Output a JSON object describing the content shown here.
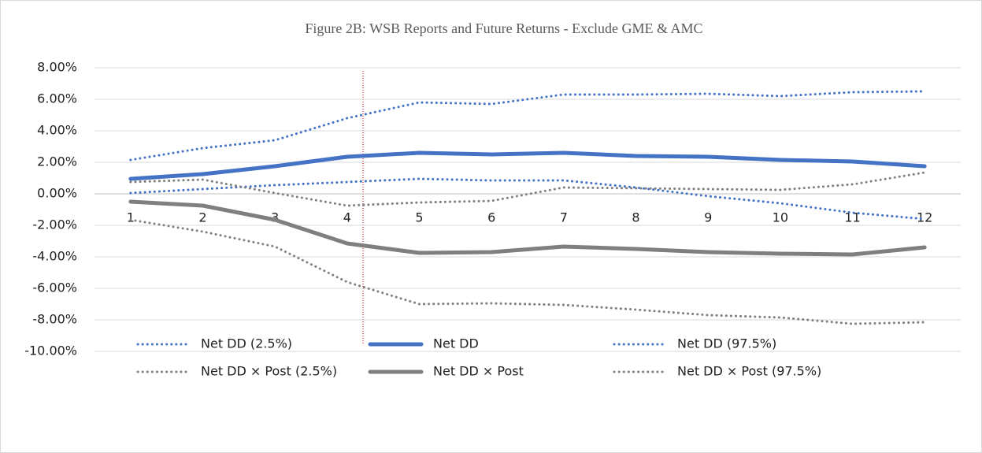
{
  "chart_data": {
    "type": "line",
    "title": "Figure 2B: WSB Reports and Future Returns - Exclude GME & AMC",
    "categories": [
      "1",
      "2",
      "3",
      "4",
      "5",
      "6",
      "7",
      "8",
      "9",
      "10",
      "11",
      "12"
    ],
    "ylim": [
      -10,
      8
    ],
    "yticks": [
      {
        "value": -10,
        "label": "-10.00%"
      },
      {
        "value": -8,
        "label": "-8.00%"
      },
      {
        "value": -6,
        "label": "-6.00%"
      },
      {
        "value": -4,
        "label": "-4.00%"
      },
      {
        "value": -2,
        "label": "-2.00%"
      },
      {
        "value": 0,
        "label": "0.00%"
      },
      {
        "value": 2,
        "label": "2.00%"
      },
      {
        "value": 4,
        "label": "4.00%"
      },
      {
        "value": 6,
        "label": "6.00%"
      },
      {
        "value": 8,
        "label": "8.00%"
      }
    ],
    "grid": true,
    "legend": "bottom",
    "series": [
      {
        "name": "Net DD (2.5%)",
        "color": "#4472c4",
        "style": "dotted",
        "values": [
          0.05,
          0.3,
          0.55,
          0.75,
          0.95,
          0.85,
          0.85,
          0.4,
          -0.15,
          -0.6,
          -1.2,
          -1.6
        ]
      },
      {
        "name": "Net DD",
        "color": "#4472c4",
        "style": "solid",
        "values": [
          0.95,
          1.25,
          1.75,
          2.35,
          2.6,
          2.5,
          2.6,
          2.4,
          2.35,
          2.15,
          2.05,
          1.75
        ]
      },
      {
        "name": "Net DD (97.5%)",
        "color": "#4472c4",
        "style": "dotted",
        "values": [
          2.15,
          2.9,
          3.4,
          4.8,
          5.8,
          5.7,
          6.3,
          6.3,
          6.35,
          6.2,
          6.45,
          6.5
        ]
      },
      {
        "name": "Net DD × Post (2.5%)",
        "color": "#7f7f7f",
        "style": "dotted",
        "values": [
          -1.65,
          -2.4,
          -3.35,
          -5.6,
          -7.0,
          -6.95,
          -7.05,
          -7.35,
          -7.7,
          -7.85,
          -8.25,
          -8.15
        ]
      },
      {
        "name": "Net DD × Post",
        "color": "#7f7f7f",
        "style": "solid",
        "values": [
          -0.5,
          -0.75,
          -1.65,
          -3.15,
          -3.75,
          -3.7,
          -3.35,
          -3.5,
          -3.7,
          -3.8,
          -3.85,
          -3.4
        ]
      },
      {
        "name": "Net DD × Post (97.5%)",
        "color": "#7f7f7f",
        "style": "dotted",
        "values": [
          0.75,
          0.9,
          0.05,
          -0.75,
          -0.55,
          -0.45,
          0.4,
          0.35,
          0.3,
          0.25,
          0.6,
          1.35
        ]
      }
    ]
  }
}
